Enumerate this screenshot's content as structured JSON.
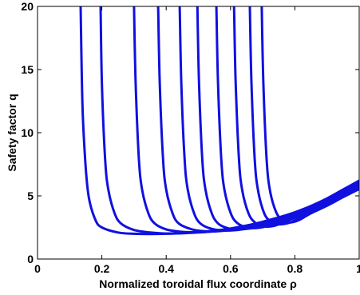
{
  "chart_data": {
    "type": "line",
    "title": "",
    "xlabel": "Normalized toroidal flux coordinate ρ",
    "ylabel": "Safety factor q",
    "xlim": [
      0,
      1
    ],
    "ylim": [
      0,
      20
    ],
    "xticks": [
      0,
      0.2,
      0.4,
      0.6,
      0.8,
      1
    ],
    "xtick_labels": [
      "0",
      "0.2",
      "0.4",
      "0.6",
      "0.8",
      "1"
    ],
    "yticks": [
      0,
      5,
      10,
      15,
      20
    ],
    "ytick_labels": [
      "0",
      "5",
      "10",
      "15",
      "20"
    ],
    "grid": false,
    "legend": "none",
    "line_color": "#1010e0",
    "series": [
      {
        "x": [
          0.134,
          0.14,
          0.15,
          0.16,
          0.18,
          0.2,
          0.25,
          0.3,
          0.35,
          0.4,
          0.45,
          0.5,
          0.55,
          0.6,
          0.65,
          0.7,
          0.75,
          0.8,
          0.85,
          0.9,
          0.95,
          1.0
        ],
        "y": [
          20,
          12,
          7.2,
          4.8,
          3.1,
          2.5,
          2.1,
          2.0,
          1.98,
          2.0,
          2.05,
          2.13,
          2.25,
          2.42,
          2.65,
          2.95,
          3.3,
          3.7,
          4.2,
          4.8,
          5.5,
          6.2
        ]
      },
      {
        "x": [
          0.196,
          0.2,
          0.21,
          0.22,
          0.24,
          0.26,
          0.3,
          0.35,
          0.4,
          0.45,
          0.5,
          0.55,
          0.6,
          0.65,
          0.7,
          0.75,
          0.8,
          0.85,
          0.9,
          0.95,
          1.0
        ],
        "y": [
          20,
          14,
          8,
          5.5,
          3.6,
          2.8,
          2.3,
          2.1,
          2.02,
          2.04,
          2.1,
          2.2,
          2.36,
          2.58,
          2.87,
          3.22,
          3.62,
          4.1,
          4.7,
          5.35,
          6.05
        ]
      },
      {
        "x": [
          0.3,
          0.305,
          0.315,
          0.325,
          0.345,
          0.365,
          0.4,
          0.45,
          0.5,
          0.55,
          0.6,
          0.65,
          0.7,
          0.75,
          0.8,
          0.85,
          0.9,
          0.95,
          1.0
        ],
        "y": [
          20,
          14,
          8,
          5.5,
          3.6,
          2.8,
          2.35,
          2.15,
          2.12,
          2.2,
          2.33,
          2.55,
          2.82,
          3.15,
          3.55,
          4.05,
          4.63,
          5.3,
          5.98
        ]
      },
      {
        "x": [
          0.375,
          0.38,
          0.39,
          0.4,
          0.42,
          0.44,
          0.48,
          0.52,
          0.56,
          0.6,
          0.65,
          0.7,
          0.75,
          0.8,
          0.85,
          0.9,
          0.95,
          1.0
        ],
        "y": [
          20,
          14,
          8,
          5.5,
          3.6,
          2.8,
          2.35,
          2.2,
          2.2,
          2.3,
          2.5,
          2.78,
          3.1,
          3.5,
          4.0,
          4.57,
          5.22,
          5.9
        ]
      },
      {
        "x": [
          0.442,
          0.447,
          0.457,
          0.467,
          0.487,
          0.507,
          0.54,
          0.58,
          0.62,
          0.66,
          0.7,
          0.75,
          0.8,
          0.85,
          0.9,
          0.95,
          1.0
        ],
        "y": [
          20,
          14,
          8,
          5.5,
          3.6,
          2.8,
          2.4,
          2.26,
          2.3,
          2.45,
          2.72,
          3.05,
          3.45,
          3.95,
          4.52,
          5.17,
          5.84
        ]
      },
      {
        "x": [
          0.497,
          0.502,
          0.512,
          0.522,
          0.542,
          0.562,
          0.59,
          0.62,
          0.66,
          0.7,
          0.75,
          0.8,
          0.85,
          0.9,
          0.95,
          1.0
        ],
        "y": [
          20,
          14,
          8,
          5.5,
          3.6,
          2.8,
          2.45,
          2.35,
          2.42,
          2.65,
          3.0,
          3.4,
          3.9,
          4.47,
          5.12,
          5.78
        ]
      },
      {
        "x": [
          0.556,
          0.561,
          0.571,
          0.581,
          0.601,
          0.621,
          0.65,
          0.68,
          0.71,
          0.75,
          0.8,
          0.85,
          0.9,
          0.95,
          1.0
        ],
        "y": [
          20,
          14,
          8,
          5.5,
          3.6,
          2.85,
          2.5,
          2.45,
          2.58,
          2.9,
          3.35,
          3.85,
          4.42,
          5.07,
          5.72
        ]
      },
      {
        "x": [
          0.611,
          0.616,
          0.626,
          0.636,
          0.656,
          0.676,
          0.7,
          0.73,
          0.76,
          0.8,
          0.85,
          0.9,
          0.95,
          1.0
        ],
        "y": [
          20,
          14,
          8,
          5.5,
          3.6,
          2.9,
          2.6,
          2.6,
          2.85,
          3.28,
          3.8,
          4.37,
          5.02,
          5.66
        ]
      },
      {
        "x": [
          0.66,
          0.665,
          0.675,
          0.685,
          0.705,
          0.725,
          0.75,
          0.78,
          0.81,
          0.85,
          0.9,
          0.95,
          1.0
        ],
        "y": [
          20,
          14,
          8,
          5.5,
          3.6,
          3.0,
          2.75,
          2.85,
          3.2,
          3.72,
          4.3,
          4.96,
          5.6
        ]
      },
      {
        "x": [
          0.697,
          0.702,
          0.712,
          0.722,
          0.742,
          0.762,
          0.785,
          0.81,
          0.85,
          0.9,
          0.95,
          1.0
        ],
        "y": [
          20,
          14,
          8,
          5.5,
          3.7,
          3.1,
          2.9,
          3.05,
          3.62,
          4.22,
          4.9,
          5.54
        ]
      }
    ]
  }
}
